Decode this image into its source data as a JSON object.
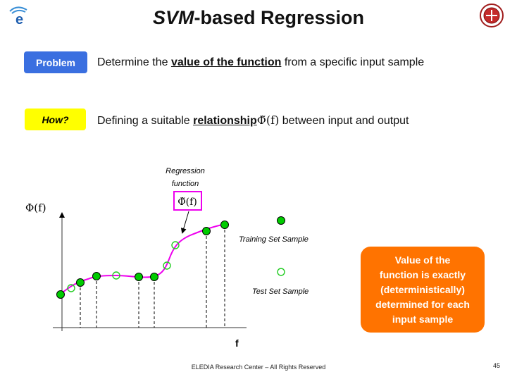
{
  "slide": {
    "title_italic": "SVM",
    "title_rest": "-based Regression",
    "footer": "ELEDIA Research Center – All Rights Reserved",
    "page_number": "45"
  },
  "problem": {
    "tag": "Problem",
    "text_before": "Determine the ",
    "text_bold": "value of the function",
    "text_after": " from a specific input sample"
  },
  "how": {
    "tag": "How?",
    "text_before": "Defining a suitable ",
    "text_bold": "relationship",
    "formula": "Φ̃(f)",
    "text_after": " between input and output"
  },
  "figure": {
    "y_axis_label": "Φ(f)",
    "x_axis_label": "f",
    "regression_label_line1": "Regression",
    "regression_label_line2": "function",
    "regression_formula": "Φ̃(f)",
    "legend_training": "Training Set Sample",
    "legend_test": "Test Set Sample",
    "curve_color": "#ee00ee",
    "training_color": "#00cc00",
    "test_color": "#22cc22"
  },
  "callout": {
    "line1": "Value of the",
    "line2": "function is exactly",
    "line3": "(deterministically)",
    "line4": "determined for each",
    "line5": "input sample"
  },
  "colors": {
    "problem_tag": "#3a6fe0",
    "how_tag": "#ffff00",
    "callout_bg": "#ff7300"
  }
}
